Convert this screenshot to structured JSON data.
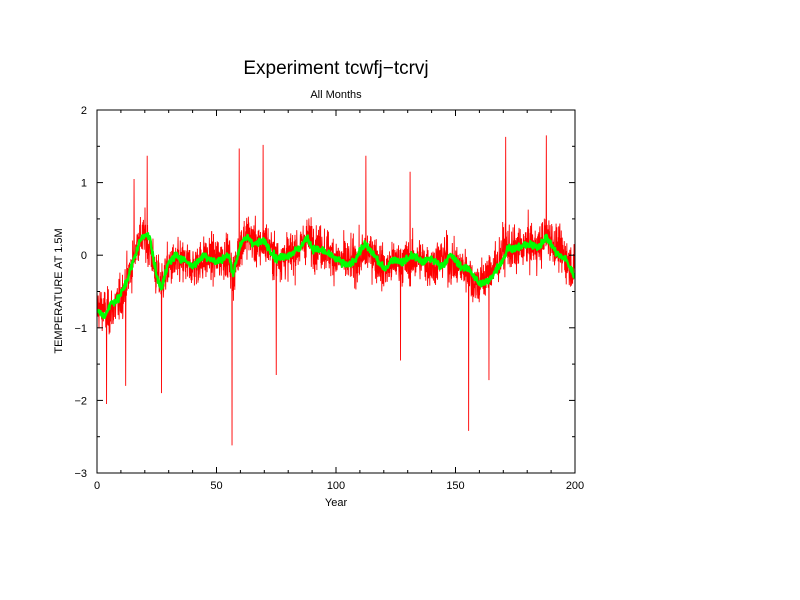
{
  "chart_data": {
    "type": "line",
    "title": "Experiment tcwfj−tcrvj",
    "subtitle": "All Months",
    "xlabel": "Year",
    "ylabel": "TEMPERATURE AT 1.5M",
    "xlim": [
      0,
      200
    ],
    "ylim": [
      -3,
      2
    ],
    "xticks": [
      0,
      50,
      100,
      150,
      200
    ],
    "yticks": [
      -3,
      -2,
      -1,
      0,
      1,
      2
    ],
    "grid": false,
    "series": [
      {
        "color": "#ff0000",
        "style": "monthly",
        "x": [
          0,
          5,
          10,
          15,
          17,
          20,
          22,
          25,
          27,
          30,
          35,
          40,
          45,
          50,
          55,
          57,
          60,
          63,
          65,
          68,
          70,
          75,
          80,
          85,
          88,
          90,
          95,
          100,
          105,
          110,
          113,
          115,
          120,
          125,
          130,
          135,
          140,
          145,
          150,
          155,
          157,
          160,
          165,
          168,
          170,
          175,
          180,
          185,
          188,
          190,
          195,
          200
        ],
        "y": [
          -0.7,
          -0.8,
          -0.6,
          -0.1,
          0.2,
          0.25,
          0.1,
          -0.3,
          -0.4,
          -0.15,
          -0.1,
          -0.15,
          -0.05,
          -0.05,
          0.0,
          -0.3,
          0.15,
          0.3,
          0.2,
          0.1,
          0.2,
          -0.05,
          0.0,
          0.1,
          0.25,
          0.15,
          0.1,
          -0.05,
          -0.1,
          -0.05,
          0.05,
          0.05,
          -0.2,
          -0.1,
          -0.1,
          -0.05,
          -0.15,
          0.0,
          -0.15,
          -0.2,
          -0.35,
          -0.4,
          -0.2,
          -0.1,
          0.1,
          0.05,
          0.15,
          0.1,
          0.3,
          0.2,
          0.0,
          -0.2
        ],
        "spikes": [
          {
            "x": 4,
            "y": -2.05
          },
          {
            "x": 12,
            "y": -1.8
          },
          {
            "x": 15.5,
            "y": 1.05
          },
          {
            "x": 21,
            "y": 1.37
          },
          {
            "x": 27,
            "y": -1.9
          },
          {
            "x": 56.5,
            "y": -2.62
          },
          {
            "x": 59.5,
            "y": 1.47
          },
          {
            "x": 69.5,
            "y": 1.52
          },
          {
            "x": 75,
            "y": -1.65
          },
          {
            "x": 112.5,
            "y": 1.37
          },
          {
            "x": 127,
            "y": -1.45
          },
          {
            "x": 131,
            "y": 1.15
          },
          {
            "x": 155.5,
            "y": -2.42
          },
          {
            "x": 164,
            "y": -1.72
          },
          {
            "x": 171,
            "y": 1.63
          },
          {
            "x": 188,
            "y": 1.65
          }
        ]
      },
      {
        "color": "#00ff00",
        "style": "smoothed",
        "x": [
          0,
          3,
          6,
          9,
          12,
          15,
          18,
          20,
          22,
          25,
          27,
          30,
          33,
          36,
          40,
          45,
          50,
          55,
          57,
          60,
          63,
          66,
          70,
          75,
          80,
          85,
          88,
          90,
          95,
          100,
          105,
          108,
          112,
          116,
          120,
          124,
          128,
          132,
          136,
          140,
          144,
          148,
          152,
          156,
          160,
          164,
          168,
          170,
          172,
          176,
          180,
          184,
          188,
          190,
          193,
          196,
          200
        ],
        "y": [
          -0.75,
          -0.85,
          -0.65,
          -0.6,
          -0.4,
          -0.1,
          0.2,
          0.3,
          0.25,
          -0.3,
          -0.45,
          -0.1,
          0.0,
          -0.05,
          -0.15,
          0.0,
          -0.1,
          0.0,
          -0.25,
          0.15,
          0.25,
          0.15,
          0.2,
          -0.05,
          0.0,
          0.1,
          0.25,
          0.1,
          0.05,
          -0.05,
          -0.15,
          -0.05,
          0.15,
          0.0,
          -0.2,
          -0.05,
          -0.1,
          0.0,
          -0.1,
          -0.05,
          -0.15,
          0.0,
          -0.15,
          -0.2,
          -0.4,
          -0.35,
          -0.15,
          -0.05,
          0.1,
          0.1,
          0.15,
          0.1,
          0.25,
          0.15,
          0.0,
          -0.05,
          -0.3
        ]
      }
    ]
  }
}
